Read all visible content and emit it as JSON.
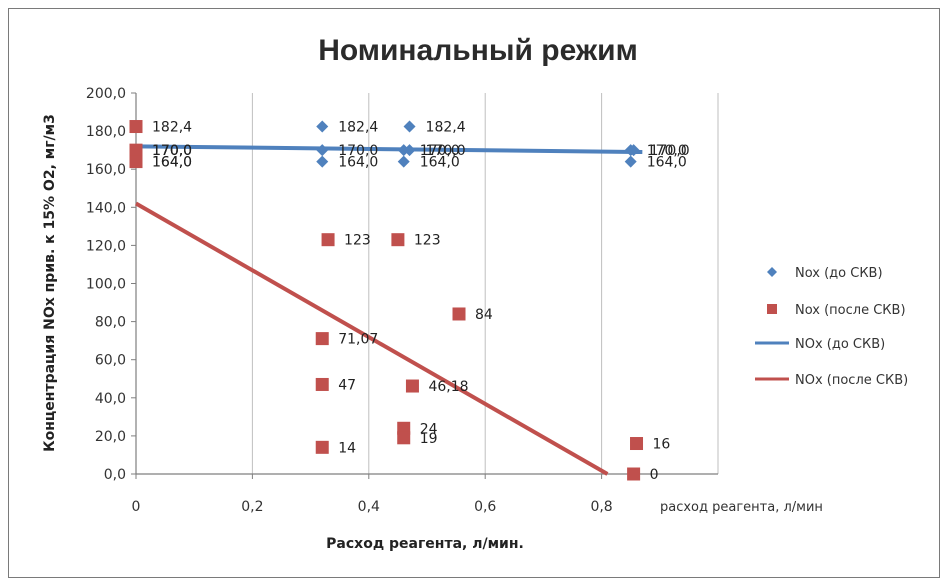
{
  "chart_data": {
    "type": "scatter",
    "title": "Номинальный режим",
    "xlabel": "Расход реагента, л/мин.",
    "x_axis_note": "расход реагента, л/мин",
    "ylabel": "Концентрация NOx прив. к 15% O2, мг/м3",
    "xlim": [
      0,
      1.0
    ],
    "ylim": [
      0,
      200
    ],
    "x_ticks": [
      "0",
      "0,2",
      "0,4",
      "0,6",
      "0,8"
    ],
    "x_tick_values": [
      0,
      0.2,
      0.4,
      0.6,
      0.8
    ],
    "y_ticks": [
      "0,0",
      "20,0",
      "40,0",
      "60,0",
      "80,0",
      "100,0",
      "120,0",
      "140,0",
      "160,0",
      "180,0",
      "200,0"
    ],
    "y_tick_values": [
      0,
      20,
      40,
      60,
      80,
      100,
      120,
      140,
      160,
      180,
      200
    ],
    "grid": "vertical",
    "legend_position": "right",
    "series": [
      {
        "name": "Nox (до СКВ)",
        "kind": "points",
        "marker": "diamond",
        "color": "#4f81bd",
        "points": [
          {
            "x": 0,
            "y": 170,
            "label": "170,0"
          },
          {
            "x": 0,
            "y": 170,
            "label": "170,0"
          },
          {
            "x": 0,
            "y": 164,
            "label": "164,0"
          },
          {
            "x": 0.32,
            "y": 182.4,
            "label": "182,4"
          },
          {
            "x": 0.32,
            "y": 170,
            "label": "170,0"
          },
          {
            "x": 0.32,
            "y": 164,
            "label": "164,0"
          },
          {
            "x": 0.46,
            "y": 170,
            "label": "170,0"
          },
          {
            "x": 0.47,
            "y": 182.4,
            "label": "182,4"
          },
          {
            "x": 0.47,
            "y": 170,
            "label": "170,0"
          },
          {
            "x": 0.46,
            "y": 164,
            "label": "164,0"
          },
          {
            "x": 0.85,
            "y": 170,
            "label": "170,0"
          },
          {
            "x": 0.855,
            "y": 170,
            "label": "170,0"
          },
          {
            "x": 0.85,
            "y": 164,
            "label": "164,0"
          }
        ]
      },
      {
        "name": "Nox (после СКВ)",
        "kind": "points",
        "marker": "square",
        "color": "#c0504d",
        "points": [
          {
            "x": 0,
            "y": 182.4,
            "label": "182,4"
          },
          {
            "x": 0,
            "y": 170,
            "label": "170,0"
          },
          {
            "x": 0,
            "y": 164,
            "label": "164,0"
          },
          {
            "x": 0.33,
            "y": 123,
            "label": "123"
          },
          {
            "x": 0.45,
            "y": 123,
            "label": "123"
          },
          {
            "x": 0.555,
            "y": 84,
            "label": "84"
          },
          {
            "x": 0.32,
            "y": 71.07,
            "label": "71,07"
          },
          {
            "x": 0.32,
            "y": 47,
            "label": "47"
          },
          {
            "x": 0.475,
            "y": 46.18,
            "label": "46,18"
          },
          {
            "x": 0.46,
            "y": 24,
            "label": "24"
          },
          {
            "x": 0.46,
            "y": 19,
            "label": "19"
          },
          {
            "x": 0.32,
            "y": 14,
            "label": "14"
          },
          {
            "x": 0.86,
            "y": 16,
            "label": "16"
          },
          {
            "x": 0.855,
            "y": 0,
            "label": "0"
          }
        ]
      },
      {
        "name": "NOx (до СКВ)",
        "kind": "trendline",
        "color": "#4f81bd",
        "from": {
          "x": 0,
          "y": 172
        },
        "to": {
          "x": 0.87,
          "y": 169
        }
      },
      {
        "name": "NOx (после СКВ)",
        "kind": "trendline",
        "color": "#c0504d",
        "from": {
          "x": 0,
          "y": 142
        },
        "to": {
          "x": 0.81,
          "y": 0
        }
      }
    ]
  }
}
